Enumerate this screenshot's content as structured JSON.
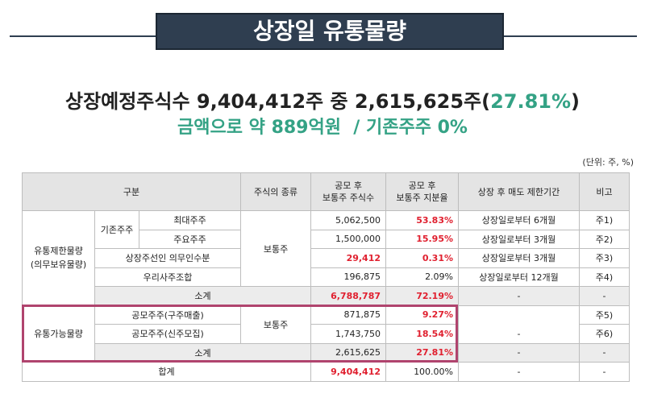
{
  "banner": "상장일 유통물량",
  "headline": {
    "line1": [
      "상장예정주식수 9,404,412주 중 2,615,625주(",
      "27.81%",
      ")"
    ],
    "line2": "금액으로 약 889억원  / 기존주주 0%"
  },
  "table": {
    "unit": "(단위: 주, %)",
    "header": {
      "category": "구분",
      "stock_type": "주식의 종류",
      "shares": [
        "공모 후",
        "보통주 주식수"
      ],
      "ratio": [
        "공모 후",
        "보통주 지분율"
      ],
      "lockup": "상장 후 매도 제한기간",
      "note": "비고"
    },
    "restricted": {
      "label": [
        "유통제한물량",
        "(의무보유물량)"
      ],
      "existing": "기존주주",
      "stock_type": "보통주",
      "rows": [
        {
          "name": "최대주주",
          "shares": "5,062,500",
          "ratio": "53.83%",
          "lockup": "상장일로부터 6개월",
          "note": "주1)"
        },
        {
          "name": "주요주주",
          "shares": "1,500,000",
          "ratio": "15.95%",
          "lockup": "상장일로부터 3개월",
          "note": "주2)"
        },
        {
          "name": "상장주선인 의무인수분",
          "shares": "29,412",
          "ratio": "0.31%",
          "lockup": "상장일로부터 3개월",
          "note": "주3)"
        },
        {
          "name": "우리사주조합",
          "shares": "196,875",
          "ratio": "2.09%",
          "lockup": "상장일로부터 12개월",
          "note": "주4)"
        }
      ],
      "subtotal": {
        "name": "소계",
        "shares": "6,788,787",
        "ratio": "72.19%",
        "lockup": "-",
        "note": "-"
      }
    },
    "tradable": {
      "label": "유통가능물량",
      "stock_type": "보통주",
      "rows": [
        {
          "name": "공모주주(구주매출)",
          "shares": "871,875",
          "ratio": "9.27%",
          "note": "주5)"
        },
        {
          "name": "공모주주(신주모집)",
          "shares": "1,743,750",
          "ratio": "18.54%",
          "lockup": "-",
          "note": "주6)"
        }
      ],
      "subtotal": {
        "name": "소계",
        "shares": "2,615,625",
        "ratio": "27.81%",
        "lockup": "-",
        "note": "-"
      }
    },
    "total": {
      "name": "합계",
      "shares": "9,404,412",
      "ratio": "100.00%",
      "lockup": "-",
      "note": "-"
    }
  }
}
